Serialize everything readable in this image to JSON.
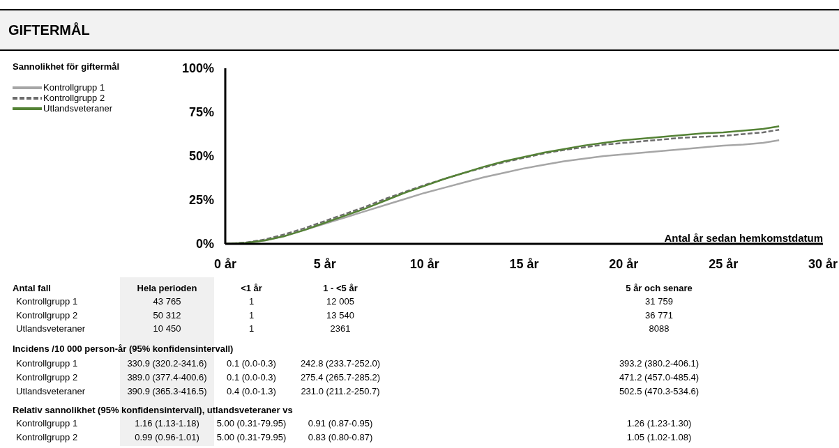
{
  "chart_data": {
    "type": "line",
    "title": "GIFTERMÅL",
    "legend_title": "Sannolikhet för giftermål",
    "xlabel": "Antal år sedan hemkomstdatum",
    "x": [
      0,
      1,
      2,
      3,
      4,
      5,
      6,
      7,
      8,
      9,
      10,
      11,
      12,
      13,
      14,
      15,
      16,
      17,
      18,
      19,
      20,
      21,
      22,
      23,
      24,
      25,
      26,
      27,
      27.8
    ],
    "series": [
      {
        "name": "Kontrollgrupp 1",
        "color": "#a6a6a6",
        "line_style": "solid",
        "values": [
          0,
          0.5,
          2,
          4.5,
          8,
          11.5,
          15,
          18.5,
          22,
          25.5,
          29,
          32,
          35,
          38,
          40.5,
          43,
          45,
          47,
          48.5,
          50,
          51,
          52,
          53,
          54,
          55,
          56,
          56.5,
          57.5,
          59
        ]
      },
      {
        "name": "Kontrollgrupp 2",
        "color": "#6d6d6d",
        "line_style": "dashed",
        "values": [
          0,
          0.7,
          2.5,
          5.5,
          9,
          13,
          17,
          21,
          25.5,
          29.5,
          33.5,
          37,
          40.5,
          43.5,
          46.5,
          49,
          51.5,
          53.5,
          55,
          56.5,
          57.5,
          58.5,
          59.5,
          60.5,
          61,
          61.5,
          62.5,
          63.5,
          65
        ]
      },
      {
        "name": "Utlandsveteraner",
        "color": "#548235",
        "line_style": "solid",
        "values": [
          0,
          0.5,
          2,
          4.5,
          8,
          12,
          16,
          20,
          24.5,
          29,
          33,
          37,
          40.5,
          44,
          47,
          49.5,
          52,
          54,
          56,
          57.5,
          59,
          60,
          61,
          62,
          63,
          63.5,
          64.5,
          65.5,
          67
        ]
      }
    ],
    "xlim": [
      0,
      30
    ],
    "xticks": [
      {
        "value": 0,
        "label": "0 år"
      },
      {
        "value": 5,
        "label": "5 år"
      },
      {
        "value": 10,
        "label": "10 år"
      },
      {
        "value": 15,
        "label": "15 år"
      },
      {
        "value": 20,
        "label": "20 år"
      },
      {
        "value": 25,
        "label": "25 år"
      },
      {
        "value": 30,
        "label": "30 år"
      }
    ],
    "ylim": [
      0,
      100
    ],
    "yticks": [
      {
        "value": 0,
        "label": "0%"
      },
      {
        "value": 25,
        "label": "25%"
      },
      {
        "value": 50,
        "label": "50%"
      },
      {
        "value": 75,
        "label": "75%"
      },
      {
        "value": 100,
        "label": "100%"
      }
    ],
    "grid": false,
    "legend": "top left",
    "marker": "none",
    "annotations": [
      "Antal fall",
      "Hela perioden",
      "<1 år",
      "1 - <5 år",
      "5 år och senare",
      "Kontrollgrupp 1",
      "43 765",
      "1",
      "12 005",
      "31 759",
      "Kontrollgrupp 2",
      "50 312",
      "1",
      "13 540",
      "36 771",
      "Utlandsveteraner",
      "10 450",
      "1",
      "2361",
      "8088",
      "Incidens /10 000 person-år (95% konfidensintervall)",
      "Kontrollgrupp 1",
      "330.9 (320.2-341.6)",
      "0.1 (0.0-0.3)",
      "242.8 (233.7-252.0)",
      "393.2 (380.2-406.1)",
      "Kontrollgrupp 2",
      "389.0 (377.4-400.6)",
      "0.1 (0.0-0.3)",
      "275.4 (265.7-285.2)",
      "471.2 (457.0-485.4)",
      "Utlandsveteraner",
      "390.9 (365.3-416.5)",
      "0.4 (0.0-1.3)",
      "231.0 (211.2-250.7)",
      "502.5 (470.3-534.6)",
      "Relativ sannolikhet (95% konfidensintervall), utlandsveteraner vs",
      "Kontrollgrupp 1",
      "1.16 (1.13-1.18)",
      "5.00 (0.31-79.95)",
      "0.91 (0.87-0.95)",
      "1.26 (1.23-1.30)",
      "Kontrollgrupp 2",
      "0.99 (0.96-1.01)",
      "5.00 (0.31-79.95)",
      "0.83 (0.80-0.87)",
      "1.05 (1.02-1.08)"
    ]
  }
}
